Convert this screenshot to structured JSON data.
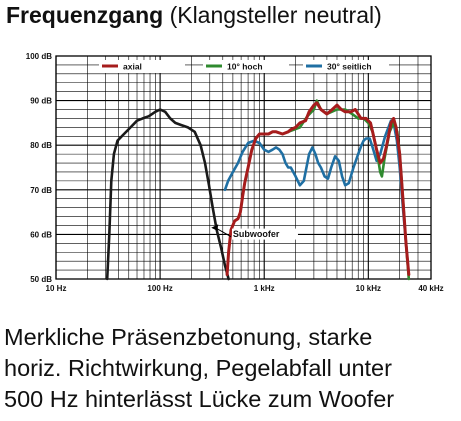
{
  "title": "Frequenzgang",
  "subtitle": "(Klangsteller neutral)",
  "caption": [
    "Merkliche Präsenzbetonung, starke",
    "horiz. Richtwirkung, Pegelabfall unter",
    "500 Hz hinterlässt Lücke zum Woofer"
  ],
  "colors": {
    "axial": "#a61c1c",
    "hoch": "#2f8a2f",
    "seitlich": "#1f6fa3",
    "subwoofer": "#1a1a1a",
    "grid": "#000000"
  },
  "chart_data": {
    "type": "line",
    "x_scale": "log",
    "xlim": [
      10,
      40000
    ],
    "ylim": [
      50,
      100
    ],
    "grid": true,
    "legend_position": "top-right",
    "x_ticks": [
      {
        "value": 10,
        "label": "10 Hz"
      },
      {
        "value": 100,
        "label": "100 Hz"
      },
      {
        "value": 1000,
        "label": "1 kHz"
      },
      {
        "value": 10000,
        "label": "10 kHz"
      },
      {
        "value": 40000,
        "label": "40 kHz"
      }
    ],
    "y_ticks": [
      {
        "value": 50,
        "label": "50 dB"
      },
      {
        "value": 60,
        "label": "60 dB"
      },
      {
        "value": 70,
        "label": "70 dB"
      },
      {
        "value": 80,
        "label": "80 dB"
      },
      {
        "value": 90,
        "label": "90 dB"
      },
      {
        "value": 100,
        "label": "100 dB"
      }
    ],
    "annotation": "Subwoofer",
    "series": [
      {
        "name": "Subwoofer",
        "legend": false,
        "color": "#1a1a1a",
        "points": [
          [
            31,
            50
          ],
          [
            32.5,
            60
          ],
          [
            34,
            72
          ],
          [
            36,
            78
          ],
          [
            39,
            81
          ],
          [
            45,
            82.5
          ],
          [
            52,
            84
          ],
          [
            60,
            85.5
          ],
          [
            68,
            86
          ],
          [
            78,
            86.5
          ],
          [
            90,
            87.5
          ],
          [
            100,
            88
          ],
          [
            112,
            87.5
          ],
          [
            125,
            86
          ],
          [
            140,
            85
          ],
          [
            160,
            84.5
          ],
          [
            185,
            84
          ],
          [
            215,
            83
          ],
          [
            245,
            80
          ],
          [
            270,
            76
          ],
          [
            295,
            71
          ],
          [
            320,
            66
          ],
          [
            350,
            61
          ],
          [
            385,
            57
          ],
          [
            420,
            53
          ],
          [
            455,
            50
          ]
        ]
      },
      {
        "name": "30° seitlich",
        "legend": true,
        "color": "#1f6fa3",
        "points": [
          [
            420,
            70
          ],
          [
            450,
            72
          ],
          [
            500,
            74
          ],
          [
            560,
            76
          ],
          [
            620,
            78.5
          ],
          [
            700,
            80.5
          ],
          [
            800,
            81
          ],
          [
            900,
            80.5
          ],
          [
            1000,
            79
          ],
          [
            1100,
            78.5
          ],
          [
            1200,
            79
          ],
          [
            1300,
            79.5
          ],
          [
            1400,
            79
          ],
          [
            1500,
            78
          ],
          [
            1600,
            76
          ],
          [
            1700,
            75
          ],
          [
            1800,
            75
          ],
          [
            2000,
            73
          ],
          [
            2200,
            71
          ],
          [
            2400,
            72
          ],
          [
            2700,
            78
          ],
          [
            2900,
            79.5
          ],
          [
            3100,
            78
          ],
          [
            3300,
            76
          ],
          [
            3500,
            75
          ],
          [
            3800,
            73
          ],
          [
            4100,
            72.5
          ],
          [
            4400,
            75
          ],
          [
            4800,
            77.5
          ],
          [
            5200,
            76.5
          ],
          [
            5600,
            73
          ],
          [
            6000,
            71
          ],
          [
            6500,
            71.5
          ],
          [
            7200,
            75
          ],
          [
            8000,
            78
          ],
          [
            8600,
            80
          ],
          [
            9000,
            81
          ],
          [
            9500,
            81.5
          ],
          [
            10300,
            81.5
          ],
          [
            11000,
            79.5
          ],
          [
            12000,
            76.5
          ],
          [
            13000,
            78
          ],
          [
            14500,
            82
          ],
          [
            16500,
            85.5
          ],
          [
            17500,
            85
          ],
          [
            18800,
            81
          ],
          [
            20000,
            75
          ],
          [
            21500,
            66
          ],
          [
            23000,
            58
          ],
          [
            24500,
            51
          ]
        ]
      },
      {
        "name": "10° hoch",
        "legend": true,
        "color": "#2f8a2f",
        "points": [
          [
            1700,
            83
          ],
          [
            2200,
            84
          ],
          [
            2600,
            86.5
          ],
          [
            3000,
            88
          ],
          [
            3200,
            90
          ],
          [
            3500,
            88
          ],
          [
            4000,
            87
          ],
          [
            5000,
            88
          ],
          [
            6000,
            88
          ],
          [
            7000,
            87
          ],
          [
            8000,
            86
          ],
          [
            9000,
            86
          ],
          [
            10000,
            85
          ],
          [
            11000,
            83
          ],
          [
            12000,
            79
          ],
          [
            13000,
            74
          ],
          [
            13500,
            73
          ],
          [
            14300,
            77
          ],
          [
            16000,
            83
          ],
          [
            17500,
            85
          ],
          [
            19000,
            83
          ],
          [
            20000,
            78
          ],
          [
            21500,
            68
          ],
          [
            23000,
            58
          ],
          [
            24500,
            50
          ]
        ]
      },
      {
        "name": "axial",
        "legend": true,
        "color": "#a61c1c",
        "points": [
          [
            440,
            51
          ],
          [
            455,
            56
          ],
          [
            480,
            61
          ],
          [
            520,
            63
          ],
          [
            560,
            63.5
          ],
          [
            590,
            65
          ],
          [
            620,
            68.5
          ],
          [
            650,
            71.5
          ],
          [
            700,
            75
          ],
          [
            760,
            79
          ],
          [
            830,
            81.5
          ],
          [
            900,
            82.5
          ],
          [
            1000,
            82.5
          ],
          [
            1100,
            82.5
          ],
          [
            1200,
            83
          ],
          [
            1300,
            83
          ],
          [
            1500,
            82.5
          ],
          [
            1700,
            83
          ],
          [
            1800,
            83.5
          ],
          [
            2000,
            84
          ],
          [
            2200,
            85
          ],
          [
            2500,
            85.5
          ],
          [
            2700,
            87.5
          ],
          [
            3000,
            89
          ],
          [
            3200,
            89.5
          ],
          [
            3500,
            88
          ],
          [
            4000,
            87
          ],
          [
            4500,
            88
          ],
          [
            5000,
            89
          ],
          [
            5500,
            88
          ],
          [
            6000,
            87.5
          ],
          [
            6800,
            87.5
          ],
          [
            7500,
            88
          ],
          [
            8500,
            86
          ],
          [
            9500,
            86
          ],
          [
            10500,
            85
          ],
          [
            11000,
            83
          ],
          [
            12000,
            79
          ],
          [
            13000,
            76
          ],
          [
            14000,
            77
          ],
          [
            15000,
            80
          ],
          [
            16500,
            85
          ],
          [
            17500,
            86
          ],
          [
            18500,
            84
          ],
          [
            20000,
            78
          ],
          [
            21500,
            68
          ],
          [
            23000,
            58
          ],
          [
            24500,
            51
          ]
        ]
      }
    ]
  }
}
